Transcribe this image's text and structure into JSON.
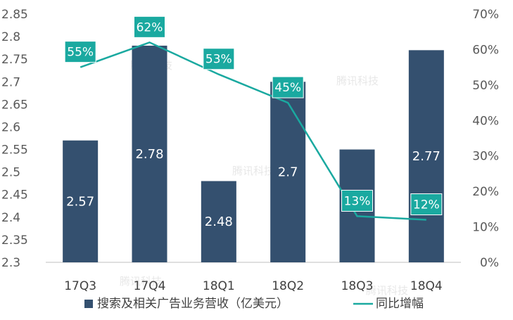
{
  "chart_data": {
    "type": "bar",
    "categories": [
      "17Q3",
      "17Q4",
      "18Q1",
      "18Q2",
      "18Q3",
      "18Q4"
    ],
    "series": [
      {
        "name": "搜索及相关广告业务营收（亿美元）",
        "type": "bar",
        "axis": "left",
        "values": [
          2.57,
          2.78,
          2.48,
          2.7,
          2.55,
          2.77
        ],
        "data_labels": [
          "2.57",
          "2.78",
          "2.48",
          "2.7",
          "",
          "2.77"
        ],
        "color": "#34506f"
      },
      {
        "name": "同比增幅",
        "type": "line",
        "axis": "right",
        "values": [
          55,
          62,
          53,
          45,
          13,
          12
        ],
        "data_labels": [
          "55%",
          "62%",
          "53%",
          "45%",
          "13%",
          "12%"
        ],
        "color": "#1aa9a0"
      }
    ],
    "y_left": {
      "ylim": [
        2.3,
        2.85
      ],
      "ticks": [
        2.3,
        2.35,
        2.4,
        2.45,
        2.5,
        2.55,
        2.6,
        2.65,
        2.7,
        2.75,
        2.8,
        2.85
      ],
      "tick_labels": [
        "2.3",
        "2.35",
        "2.4",
        "2.45",
        "2.5",
        "2.55",
        "2.6",
        "2.65",
        "2.7",
        "2.75",
        "2.8",
        "2.85"
      ]
    },
    "y_right": {
      "ylim": [
        0,
        70
      ],
      "ticks": [
        0,
        10,
        20,
        30,
        40,
        50,
        60,
        70
      ],
      "tick_labels": [
        "0%",
        "10%",
        "20%",
        "30%",
        "40%",
        "50%",
        "60%",
        "70%"
      ]
    },
    "legend_position": "bottom",
    "grid": false,
    "watermark": "腾讯科技"
  }
}
